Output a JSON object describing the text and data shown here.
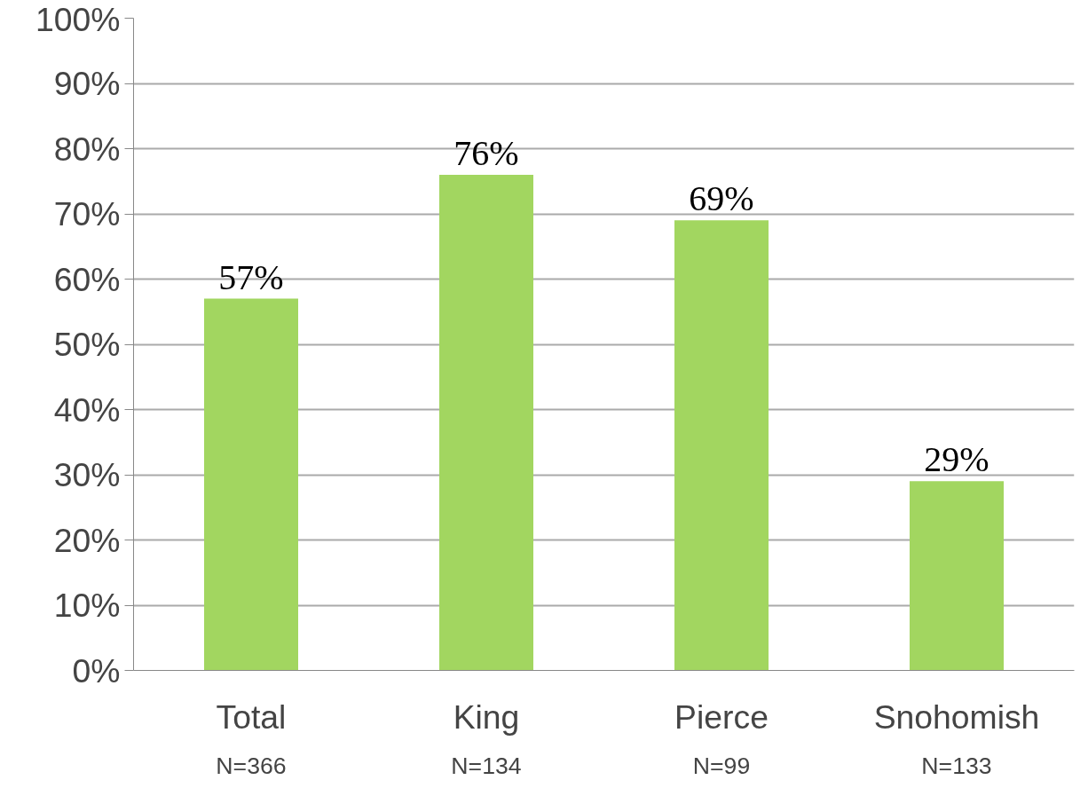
{
  "chart_data": {
    "type": "bar",
    "categories": [
      "Total",
      "King",
      "Pierce",
      "Snohomish"
    ],
    "values": [
      57,
      76,
      69,
      29
    ],
    "value_labels": [
      "57%",
      "76%",
      "69%",
      "29%"
    ],
    "color": "#a2d660",
    "ylim": [
      0,
      100
    ],
    "yticks": [
      {
        "value": 0,
        "label": "0%"
      },
      {
        "value": 10,
        "label": "10%"
      },
      {
        "value": 20,
        "label": "20%"
      },
      {
        "value": 30,
        "label": "30%"
      },
      {
        "value": 40,
        "label": "40%"
      },
      {
        "value": 50,
        "label": "50%"
      },
      {
        "value": 60,
        "label": "60%"
      },
      {
        "value": 70,
        "label": "70%"
      },
      {
        "value": 80,
        "label": "80%"
      },
      {
        "value": 90,
        "label": "90%"
      },
      {
        "value": 100,
        "label": "100%"
      }
    ],
    "grid": "y",
    "annotations": [
      "N=366",
      "N=134",
      "N=99",
      "N=133"
    ]
  }
}
